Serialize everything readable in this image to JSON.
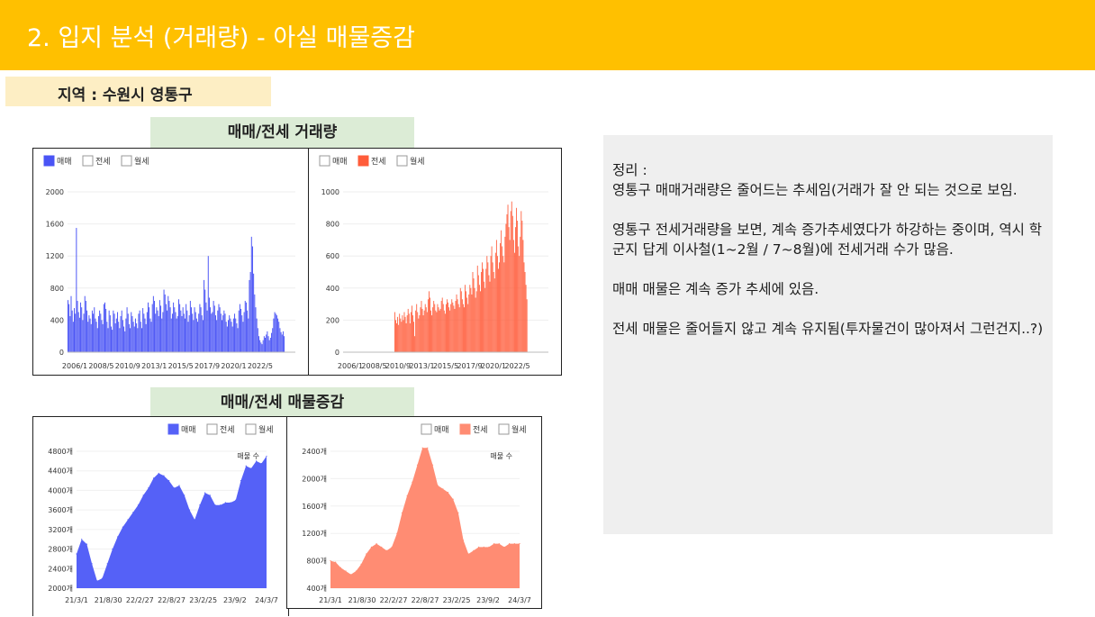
{
  "header": {
    "title": "2. 입지 분석 (거래량) - 아실 매물증감"
  },
  "region": {
    "label": "지역 : 수원시 영통구"
  },
  "section1": {
    "title": "매매/전세 거래량"
  },
  "section2": {
    "title": "매매/전세 매물증감"
  },
  "notes": {
    "heading": "정리 :",
    "p1": "영통구 매매거래량은 줄어드는 추세임(거래가 잘 안 되는 것으로 보임.",
    "p2": "영통구 전세거래량을 보면, 계속 증가추세였다가 하강하는 중이며, 역시 학군지 답게 이사철(1~2월 / 7~8월)에 전세거래 수가 많음.",
    "p3": "매매 매물은 계속 증가 추세에 있음.",
    "p4": "전세 매물은 줄어들지 않고 계속 유지됨(투자물건이 많아져서 그런건지..?)"
  },
  "colors": {
    "blue": "#4a54f5",
    "red": "#ff5c3a",
    "salmon": "#ff8c73",
    "header": "#ffc000"
  },
  "chart_data": [
    {
      "type": "bar",
      "legend": [
        "매매",
        "전세",
        "월세"
      ],
      "active": 0,
      "color": "#4a54f5",
      "ylim": [
        0,
        2000
      ],
      "yticks": [
        0,
        400,
        800,
        1200,
        1600,
        2000
      ],
      "xticks": [
        "2006/1",
        "2008/5",
        "2010/9",
        "2013/1",
        "2015/5",
        "2017/9",
        "2020/1",
        "2022/5"
      ],
      "x_range": [
        "2006/1",
        "2023/12"
      ],
      "monthly_values": [
        650,
        600,
        450,
        700,
        520,
        380,
        550,
        480,
        1550,
        640,
        500,
        430,
        620,
        560,
        400,
        480,
        700,
        640,
        520,
        380,
        460,
        420,
        350,
        520,
        480,
        560,
        420,
        380,
        300,
        450,
        520,
        480,
        400,
        350,
        600,
        620,
        540,
        380,
        300,
        520,
        460,
        320,
        280,
        520,
        480,
        360,
        420,
        500,
        380,
        300,
        450,
        520,
        400,
        320,
        260,
        420,
        560,
        480,
        350,
        300,
        500,
        450,
        380,
        320,
        420,
        360,
        300,
        480,
        520,
        380,
        300,
        550,
        480,
        420,
        350,
        500,
        620,
        560,
        420,
        380,
        600,
        700,
        640,
        480,
        560,
        520,
        450,
        650,
        580,
        420,
        500,
        780,
        720,
        600,
        520,
        700,
        640,
        560,
        420,
        480,
        620,
        560,
        500,
        420,
        450,
        660,
        600,
        520,
        450,
        560,
        480,
        420,
        600,
        520,
        380,
        460,
        640,
        560,
        480,
        400,
        560,
        500,
        420,
        380,
        480,
        600,
        560,
        460,
        400,
        900,
        780,
        620,
        520,
        1200,
        680,
        560,
        480,
        500,
        640,
        580,
        460,
        400,
        520,
        600,
        560,
        480,
        400,
        460,
        520,
        480,
        380,
        320,
        400,
        460,
        420,
        380,
        320,
        420,
        480,
        420,
        360,
        300,
        520,
        600,
        540,
        460,
        380,
        500,
        640,
        620,
        520,
        420,
        900,
        1000,
        1440,
        1320,
        980,
        720,
        560,
        420,
        300,
        200,
        150,
        120,
        100,
        150,
        200,
        180,
        220,
        260,
        200,
        150,
        180,
        240,
        300,
        420,
        500,
        480,
        460,
        420,
        380,
        300,
        250,
        220,
        260,
        200
      ]
    },
    {
      "type": "bar",
      "legend": [
        "매매",
        "전세",
        "월세"
      ],
      "active": 1,
      "color": "#ff5c3a",
      "ylim": [
        0,
        1000
      ],
      "yticks": [
        0,
        200,
        400,
        600,
        800,
        1000
      ],
      "xticks": [
        "2006/1",
        "2008/5",
        "2010/9",
        "2013/1",
        "2015/5",
        "2017/9",
        "2020/1",
        "2022/5"
      ],
      "x_range": [
        "2006/1",
        "2023/12"
      ],
      "data_start_index": 54,
      "monthly_values": [
        250,
        200,
        180,
        220,
        170,
        240,
        210,
        190,
        230,
        200,
        250,
        220,
        180,
        230,
        270,
        240,
        180,
        250,
        290,
        230,
        190,
        100,
        260,
        300,
        250,
        210,
        230,
        280,
        320,
        270,
        230,
        260,
        300,
        280,
        250,
        330,
        380,
        340,
        260,
        230,
        280,
        320,
        300,
        260,
        250,
        300,
        280,
        260,
        270,
        320,
        340,
        300,
        260,
        240,
        300,
        330,
        310,
        280,
        260,
        300,
        330,
        310,
        290,
        270,
        320,
        360,
        330,
        300,
        280,
        400,
        380,
        330,
        300,
        280,
        420,
        380,
        340,
        300,
        360,
        420,
        400,
        360,
        500,
        460,
        400,
        340,
        380,
        540,
        480,
        420,
        380,
        500,
        560,
        520,
        440,
        400,
        520,
        600,
        560,
        480,
        440,
        600,
        660,
        560,
        500,
        460,
        620,
        700,
        600,
        520,
        560,
        680,
        760,
        660,
        600,
        560,
        720,
        800,
        860,
        920,
        780,
        700,
        880,
        940,
        850,
        700,
        620,
        780,
        900,
        820,
        660,
        600,
        720,
        880,
        820,
        700,
        560,
        500,
        420,
        330
      ]
    },
    {
      "type": "area",
      "legend": [
        "매매",
        "전세",
        "월세"
      ],
      "active": 0,
      "series_label": "매물 수",
      "color": "#5561f7",
      "ylim": [
        2000,
        4800
      ],
      "yticks": [
        "2000개",
        "2400개",
        "2800개",
        "3200개",
        "3600개",
        "4000개",
        "4400개",
        "4800개"
      ],
      "xticks": [
        "21/3/1",
        "21/8/30",
        "22/2/27",
        "22/8/27",
        "23/2/25",
        "23/9/2",
        "24/3/7"
      ],
      "x": [
        "21/3/1",
        "21/4/1",
        "21/5/1",
        "21/6/1",
        "21/7/1",
        "21/8/1",
        "21/9/1",
        "21/10/1",
        "21/11/1",
        "21/12/1",
        "22/1/1",
        "22/2/1",
        "22/3/1",
        "22/4/1",
        "22/5/1",
        "22/6/1",
        "22/7/1",
        "22/8/1",
        "22/9/1",
        "22/10/1",
        "22/11/1",
        "22/12/1",
        "23/1/1",
        "23/2/1",
        "23/3/1",
        "23/4/1",
        "23/5/1",
        "23/6/1",
        "23/7/1",
        "23/8/1",
        "23/9/1",
        "23/10/1",
        "23/11/1",
        "23/12/1",
        "24/1/1",
        "24/2/1",
        "24/3/1",
        "24/4/1"
      ],
      "values": [
        2700,
        3000,
        2900,
        2500,
        2150,
        2200,
        2500,
        2800,
        3050,
        3250,
        3400,
        3550,
        3700,
        3900,
        4050,
        4250,
        4350,
        4300,
        4200,
        4050,
        4100,
        3900,
        3600,
        3400,
        3700,
        3950,
        3900,
        3700,
        3700,
        3750,
        3750,
        3800,
        4200,
        4500,
        4450,
        4600,
        4550,
        4700
      ]
    },
    {
      "type": "area",
      "legend": [
        "매매",
        "전세",
        "월세"
      ],
      "active": 1,
      "series_label": "매물 수",
      "color": "#ff8c73",
      "ylim": [
        400,
        2400
      ],
      "yticks": [
        "400개",
        "800개",
        "1200개",
        "1600개",
        "2000개",
        "2400개"
      ],
      "xticks": [
        "21/3/1",
        "21/8/30",
        "22/2/27",
        "22/8/27",
        "23/2/25",
        "23/9/2",
        "24/3/7"
      ],
      "x": [
        "21/3/1",
        "21/4/1",
        "21/5/1",
        "21/6/1",
        "21/7/1",
        "21/8/1",
        "21/9/1",
        "21/10/1",
        "21/11/1",
        "21/12/1",
        "22/1/1",
        "22/2/1",
        "22/3/1",
        "22/4/1",
        "22/5/1",
        "22/6/1",
        "22/7/1",
        "22/8/1",
        "22/9/1",
        "22/10/1",
        "22/11/1",
        "22/12/1",
        "23/1/1",
        "23/2/1",
        "23/3/1",
        "23/4/1",
        "23/5/1",
        "23/6/1",
        "23/7/1",
        "23/8/1",
        "23/9/1",
        "23/10/1",
        "23/11/1",
        "23/12/1",
        "24/1/1",
        "24/2/1",
        "24/3/1",
        "24/4/1"
      ],
      "values": [
        800,
        780,
        700,
        650,
        600,
        650,
        750,
        900,
        1000,
        1050,
        1000,
        950,
        1000,
        1200,
        1500,
        1750,
        1950,
        2200,
        2450,
        2450,
        2200,
        1900,
        1850,
        1800,
        1700,
        1500,
        1100,
        900,
        950,
        1000,
        1000,
        1000,
        1050,
        1050,
        1000,
        1050,
        1050,
        1050
      ]
    }
  ]
}
